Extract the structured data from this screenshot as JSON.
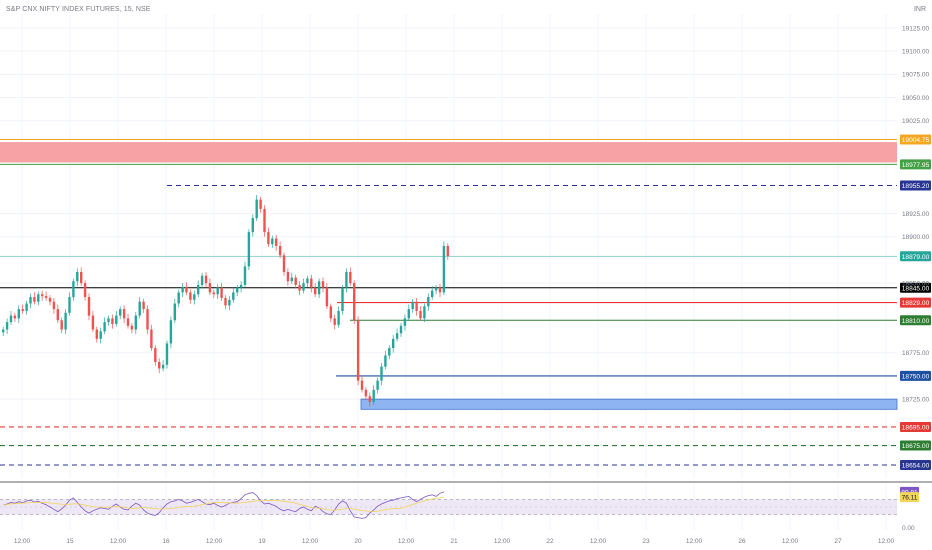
{
  "header": {
    "symbol": "S&P CNX NIFTY INDEX FUTURES",
    "interval": "15",
    "exchange": "NSE",
    "currency": "INR"
  },
  "colors": {
    "up": "#26a69a",
    "down": "#ef5350",
    "grid": "#f0f3fa",
    "rsi_line": "#7e57c2",
    "rsi_ma": "#f2d55a",
    "rsi_band": "#ede7f6",
    "supply_zone": "#f7a3a6",
    "demand_zone": "#8fb4f2"
  },
  "chart_data": [
    {
      "type": "candlestick",
      "symbol": "S&P CNX NIFTY INDEX FUTURES",
      "interval": "15",
      "exchange": "NSE",
      "ylim": [
        18640,
        19140
      ],
      "price_ticks": [
        "19125.00",
        "19100.00",
        "19075.00",
        "19050.00",
        "19025.00",
        "18925.00",
        "18900.00",
        "18850.00",
        "18775.00",
        "18725.00"
      ],
      "x_ticks": [
        "12:00",
        "15",
        "12:00",
        "16",
        "12:00",
        "19",
        "12:00",
        "20",
        "12:00",
        "21",
        "12:00",
        "22",
        "12:00",
        "23",
        "12:00",
        "26",
        "12:00",
        "27",
        "12:00"
      ],
      "last_close": 18879.0,
      "horizontal_levels": [
        {
          "value": 19004.75,
          "label": "19004.75",
          "color": "#f5a623",
          "style": "solid"
        },
        {
          "value": 18977.95,
          "label": "18977.95",
          "color": "#43a047",
          "style": "solid"
        },
        {
          "value": 18955.2,
          "label": "18955.20",
          "color": "#283593",
          "style": "dashed"
        },
        {
          "value": 18879.0,
          "label": "18879.00",
          "color": "#26a69a",
          "style": "solid"
        },
        {
          "value": 18845.0,
          "label": "18845.00",
          "color": "#000000",
          "style": "solid"
        },
        {
          "value": 18829.0,
          "label": "18829.00",
          "color": "#e53935",
          "style": "solid"
        },
        {
          "value": 18810.0,
          "label": "18810.00",
          "color": "#2e7d32",
          "style": "solid"
        },
        {
          "value": 18750.0,
          "label": "18750.00",
          "color": "#1e50a2",
          "style": "solid"
        },
        {
          "value": 18695.0,
          "label": "18695.00",
          "color": "#e53935",
          "style": "dashed"
        },
        {
          "value": 18675.0,
          "label": "18675.00",
          "color": "#2e7d32",
          "style": "dashed"
        },
        {
          "value": 18654.0,
          "label": "18654.00",
          "color": "#283593",
          "style": "dashed"
        }
      ],
      "zones": [
        {
          "name": "supply",
          "from": 18980,
          "to": 19002
        },
        {
          "name": "demand",
          "from": 18714,
          "to": 18725
        }
      ],
      "closes": [
        18800,
        18808,
        18815,
        18812,
        18822,
        18820,
        18828,
        18835,
        18830,
        18838,
        18836,
        18834,
        18830,
        18822,
        18810,
        18800,
        18818,
        18835,
        18852,
        18862,
        18850,
        18835,
        18815,
        18800,
        18790,
        18798,
        18808,
        18812,
        18806,
        18815,
        18822,
        18812,
        18804,
        18800,
        18815,
        18830,
        18822,
        18800,
        18780,
        18765,
        18758,
        18762,
        18785,
        18810,
        18828,
        18840,
        18846,
        18840,
        18832,
        18838,
        18848,
        18858,
        18850,
        18840,
        18838,
        18845,
        18834,
        18826,
        18832,
        18840,
        18845,
        18848,
        18868,
        18905,
        18920,
        18940,
        18930,
        18905,
        18892,
        18898,
        18890,
        18880,
        18862,
        18852,
        18856,
        18848,
        18842,
        18850,
        18855,
        18845,
        18838,
        18852,
        18845,
        18825,
        18812,
        18805,
        18820,
        18845,
        18862,
        18850,
        18810,
        18745,
        18735,
        18728,
        18722,
        18735,
        18745,
        18760,
        18772,
        18780,
        18790,
        18796,
        18804,
        18812,
        18822,
        18830,
        18820,
        18812,
        18825,
        18835,
        18842,
        18845,
        18840,
        18890,
        18879
      ],
      "rsi": {
        "values": [
          55,
          58,
          62,
          60,
          64,
          61,
          66,
          68,
          63,
          65,
          60,
          56,
          50,
          44,
          38,
          45,
          55,
          68,
          74,
          62,
          50,
          40,
          34,
          40,
          44,
          48,
          46,
          44,
          52,
          58,
          50,
          44,
          42,
          52,
          60,
          55,
          42,
          34,
          30,
          28,
          35,
          48,
          58,
          64,
          66,
          70,
          66,
          60,
          62,
          66,
          70,
          64,
          58,
          56,
          60,
          54,
          50,
          54,
          60,
          62,
          64,
          72,
          82,
          86,
          88,
          80,
          66,
          58,
          60,
          56,
          52,
          44,
          40,
          44,
          40,
          38,
          46,
          50,
          44,
          40,
          52,
          48,
          38,
          32,
          30,
          42,
          58,
          66,
          60,
          40,
          24,
          22,
          20,
          22,
          34,
          42,
          52,
          58,
          62,
          66,
          68,
          72,
          74,
          76,
          78,
          70,
          64,
          70,
          76,
          80,
          82,
          78,
          86,
          89.81
        ],
        "ma_value": 76.11,
        "last_value": 89.81,
        "levels": [
          70,
          50,
          30
        ],
        "ylim": [
          0,
          100
        ],
        "tick_label": "0.00"
      }
    }
  ]
}
